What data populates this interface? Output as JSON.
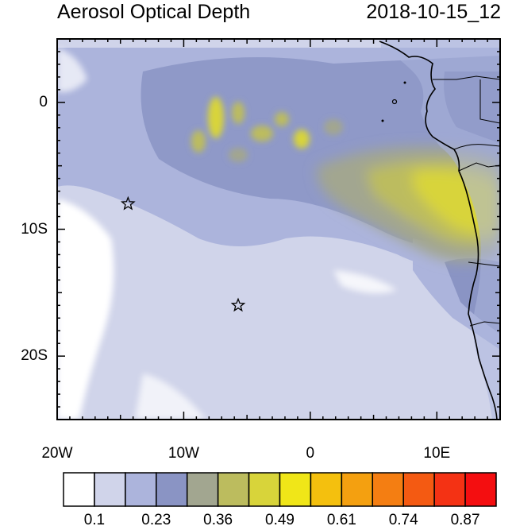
{
  "title_left": "Aerosol Optical Depth",
  "title_right": "2018-10-15_12",
  "map": {
    "lon_range": [
      -20,
      15
    ],
    "lat_range": [
      -25,
      5
    ],
    "lon_ticks": [
      {
        "lon": -20,
        "label": "20W"
      },
      {
        "lon": -10,
        "label": "10W"
      },
      {
        "lon": 0,
        "label": "0"
      },
      {
        "lon": 10,
        "label": "10E"
      }
    ],
    "lat_ticks": [
      {
        "lat": 0,
        "label": "0"
      },
      {
        "lat": -10,
        "label": "10S"
      },
      {
        "lat": -20,
        "label": "20S"
      }
    ],
    "markers": [
      {
        "name": "station-star",
        "lon": -14.4,
        "lat": -8.0
      },
      {
        "name": "station-star",
        "lon": -5.7,
        "lat": -16.0
      }
    ]
  },
  "colorbar": {
    "colors": [
      "#ffffff",
      "#d0d4ea",
      "#acb4dc",
      "#8a94c4",
      "#a2a690",
      "#bcbc5e",
      "#d8d43a",
      "#f0e618",
      "#f4c00e",
      "#f4a010",
      "#f47e12",
      "#f45a12",
      "#f43214",
      "#f40e10"
    ],
    "labels": [
      "0.1",
      "0.23",
      "0.36",
      "0.49",
      "0.61",
      "0.74",
      "0.87"
    ]
  }
}
